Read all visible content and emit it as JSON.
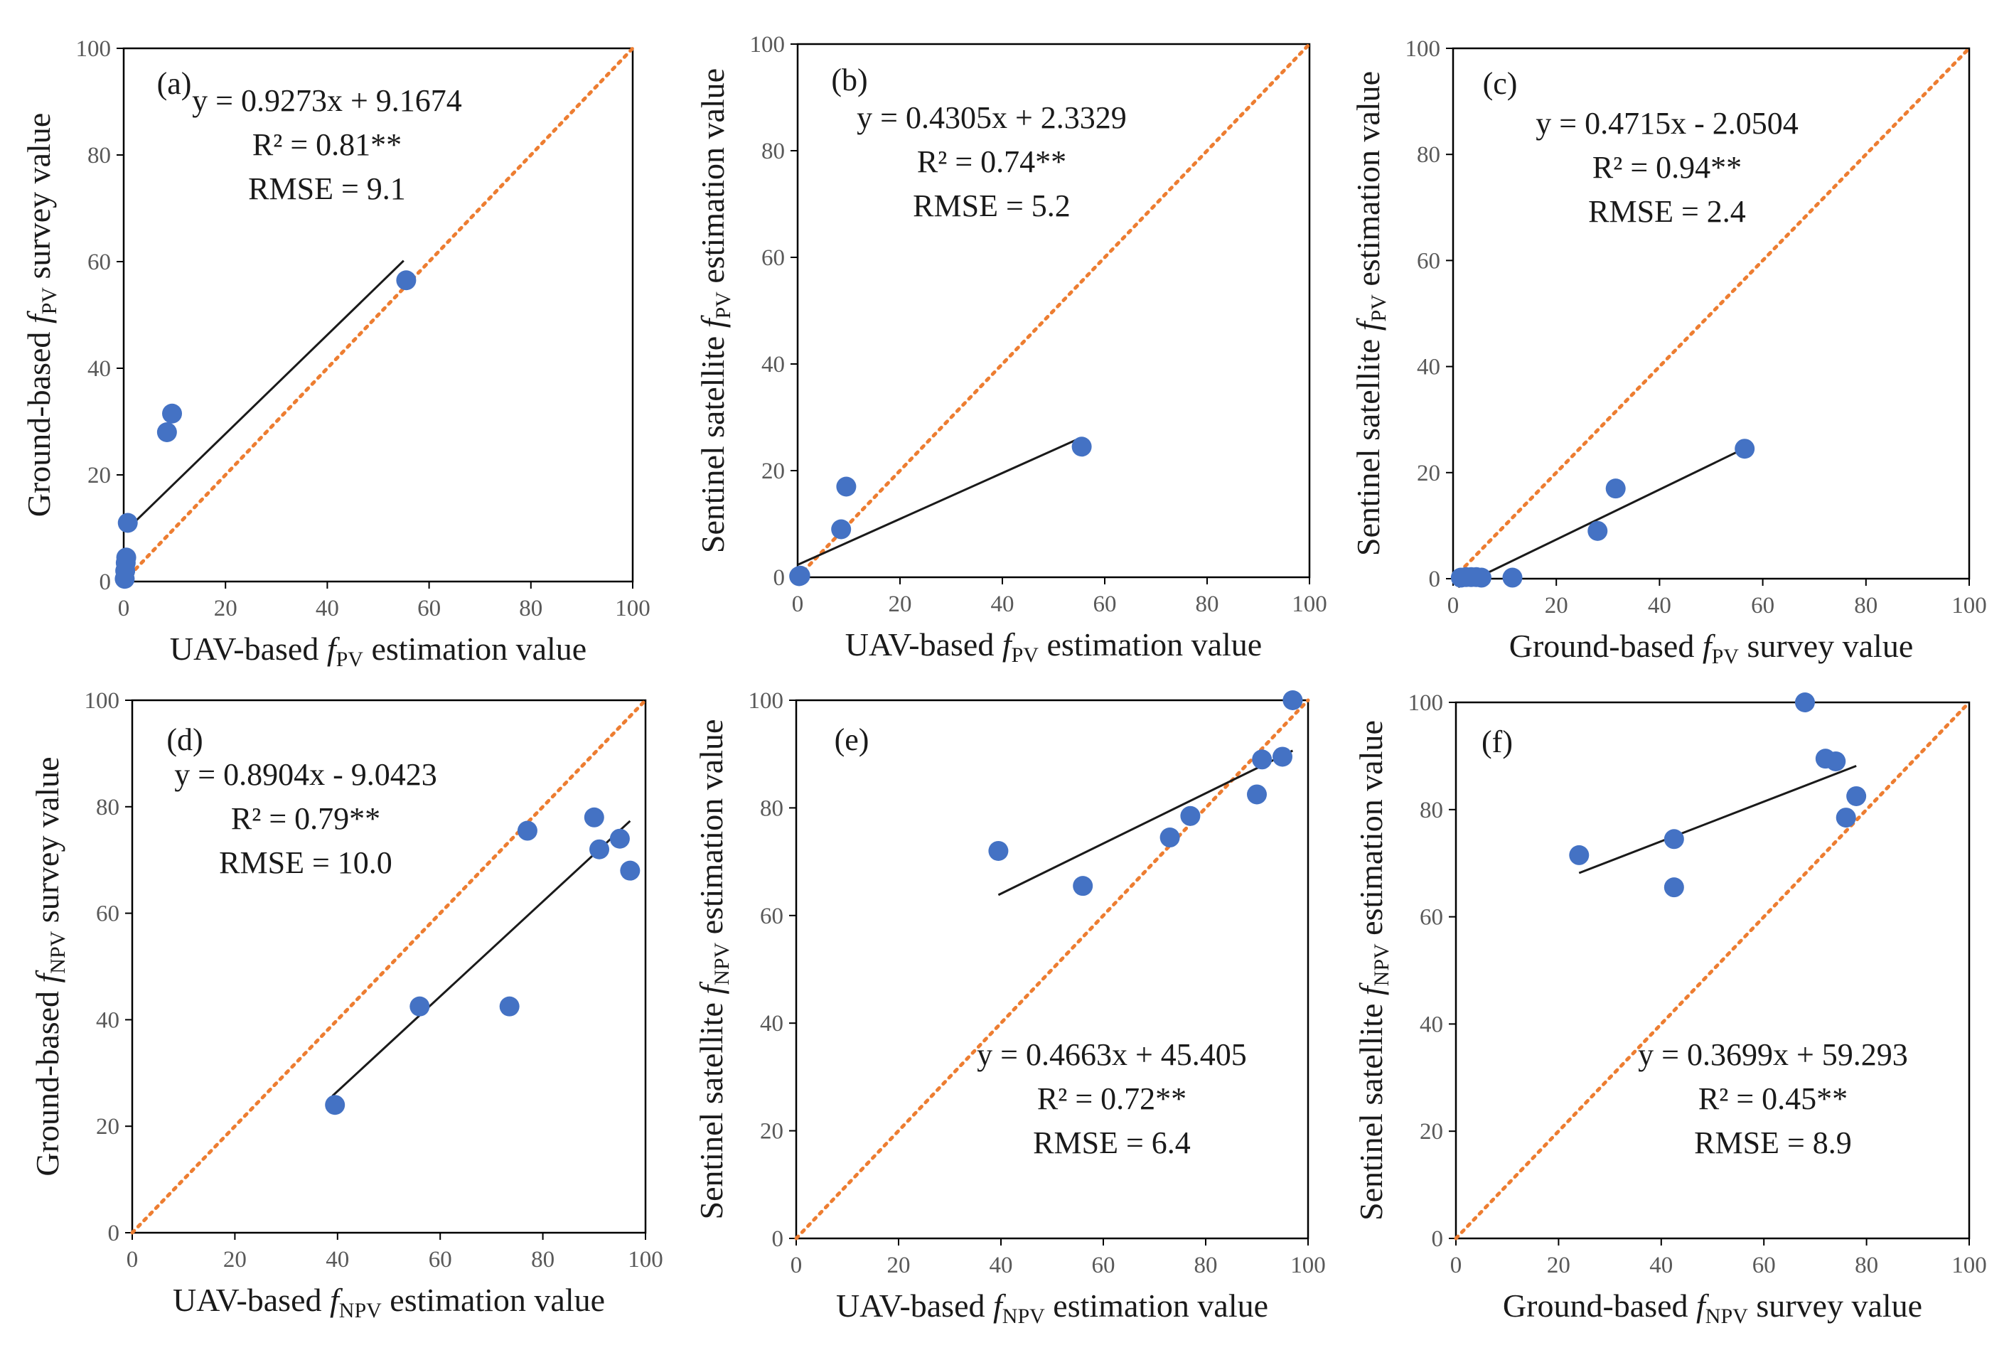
{
  "colors": {
    "point": "#4472C4",
    "identity_line": "#ED7D31",
    "fit_line": "#1a1a1a",
    "axis": "#000000",
    "tick_text": "#595959"
  },
  "chart_data": [
    {
      "type": "scatter",
      "panel": "(a)",
      "xlabel": {
        "pre": "UAV-based ",
        "var": "f",
        "sub": "PV",
        "post": " estimation value"
      },
      "ylabel": {
        "pre": "Ground-based ",
        "var": "f",
        "sub": "PV",
        "post": " survey value"
      },
      "xlim": [
        0,
        100
      ],
      "ylim": [
        0,
        100
      ],
      "xticks": [
        "0",
        "20",
        "40",
        "60",
        "80",
        "100"
      ],
      "yticks": [
        "0",
        "20",
        "40",
        "60",
        "80",
        "100"
      ],
      "points": [
        [
          0.2,
          0.5
        ],
        [
          0.3,
          2
        ],
        [
          0.4,
          3.5
        ],
        [
          0.5,
          4.5
        ],
        [
          0.8,
          11
        ],
        [
          8.5,
          28
        ],
        [
          9.5,
          31.5
        ],
        [
          55.5,
          56.5
        ]
      ],
      "fit_x_range": [
        1,
        55
      ],
      "fit": {
        "slope": 0.9273,
        "intercept": 9.1674
      },
      "equation": "y = 0.9273x + 9.1674",
      "r2": "R² = 0.81**",
      "rmse": "RMSE = 9.1",
      "annotation_position": "top-left"
    },
    {
      "type": "scatter",
      "panel": "(b)",
      "xlabel": {
        "pre": "UAV-based ",
        "var": "f",
        "sub": "PV",
        "post": " estimation value"
      },
      "ylabel": {
        "pre": "Sentinel satellite  ",
        "var": "f",
        "sub": "PV",
        "post": "  estimation value"
      },
      "xlim": [
        0,
        100
      ],
      "ylim": [
        0,
        100
      ],
      "xticks": [
        "0",
        "20",
        "40",
        "60",
        "80",
        "100"
      ],
      "yticks": [
        "0",
        "20",
        "40",
        "60",
        "80",
        "100"
      ],
      "points": [
        [
          0.3,
          0.2
        ],
        [
          0.5,
          0.3
        ],
        [
          8.5,
          9
        ],
        [
          9.5,
          17
        ],
        [
          55.5,
          24.5
        ]
      ],
      "fit_x_range": [
        0,
        55
      ],
      "fit": {
        "slope": 0.4305,
        "intercept": 2.3329
      },
      "equation": "y = 0.4305x + 2.3329",
      "r2": "R² = 0.74**",
      "rmse": "RMSE = 5.2",
      "annotation_position": "top-left"
    },
    {
      "type": "scatter",
      "panel": "(c)",
      "xlabel": {
        "pre": "Ground-based ",
        "var": "f",
        "sub": "PV",
        "post": " survey value"
      },
      "ylabel": {
        "pre": "Sentinel satellite  ",
        "var": "f",
        "sub": "PV",
        "post": "  estimation value"
      },
      "xlim": [
        0,
        100
      ],
      "ylim": [
        0,
        100
      ],
      "xticks": [
        "0",
        "20",
        "40",
        "60",
        "80",
        "100"
      ],
      "yticks": [
        "0",
        "20",
        "40",
        "60",
        "80",
        "100"
      ],
      "points": [
        [
          1.5,
          0.2
        ],
        [
          2.5,
          0.3
        ],
        [
          3.5,
          0.3
        ],
        [
          4.5,
          0.3
        ],
        [
          5.5,
          0.2
        ],
        [
          11.5,
          0.2
        ],
        [
          28,
          9
        ],
        [
          31.5,
          17
        ],
        [
          56.5,
          24.5
        ]
      ],
      "fit_x_range": [
        1,
        56
      ],
      "fit": {
        "slope": 0.4715,
        "intercept": -2.0504
      },
      "equation": "y = 0.4715x - 2.0504",
      "r2": "R² = 0.94**",
      "rmse": "RMSE = 2.4",
      "annotation_position": "top-left"
    },
    {
      "type": "scatter",
      "panel": "(d)",
      "xlabel": {
        "pre": "UAV-based ",
        "var": "f",
        "sub": "NPV",
        "post": " estimation value"
      },
      "ylabel": {
        "pre": "Ground-based ",
        "var": "f",
        "sub": "NPV",
        "post": " survey value"
      },
      "xlim": [
        0,
        100
      ],
      "ylim": [
        0,
        100
      ],
      "xticks": [
        "0",
        "20",
        "40",
        "60",
        "80",
        "100"
      ],
      "yticks": [
        "0",
        "20",
        "40",
        "60",
        "80",
        "100"
      ],
      "points": [
        [
          39.5,
          24
        ],
        [
          56,
          42.5
        ],
        [
          73.5,
          42.5
        ],
        [
          77,
          75.5
        ],
        [
          90,
          78
        ],
        [
          91,
          72
        ],
        [
          95,
          74
        ],
        [
          97,
          68
        ]
      ],
      "fit_x_range": [
        39,
        97
      ],
      "fit": {
        "slope": 0.8904,
        "intercept": -9.0423
      },
      "equation": "y = 0.8904x - 9.0423",
      "r2": "R² = 0.79**",
      "rmse": "RMSE = 10.0",
      "annotation_position": "mid-left"
    },
    {
      "type": "scatter",
      "panel": "(e)",
      "xlabel": {
        "pre": "UAV-based ",
        "var": "f",
        "sub": "NPV",
        "post": " estimation value"
      },
      "ylabel": {
        "pre": "Sentinel satellite  ",
        "var": "f",
        "sub": "NPV",
        "post": " estimation value"
      },
      "xlim": [
        0,
        100
      ],
      "ylim": [
        0,
        100
      ],
      "xticks": [
        "0",
        "20",
        "40",
        "60",
        "80",
        "100"
      ],
      "yticks": [
        "0",
        "20",
        "40",
        "60",
        "80",
        "100"
      ],
      "points": [
        [
          39.5,
          72
        ],
        [
          56,
          65.5
        ],
        [
          73,
          74.5
        ],
        [
          77,
          78.5
        ],
        [
          90,
          82.5
        ],
        [
          91,
          89
        ],
        [
          95,
          89.5
        ],
        [
          97,
          100
        ]
      ],
      "fit_x_range": [
        39.5,
        97
      ],
      "fit": {
        "slope": 0.4663,
        "intercept": 45.405
      },
      "equation": "y = 0.4663x + 45.405",
      "r2": "R² = 0.72**",
      "rmse": "RMSE = 6.4",
      "annotation_position": "bottom-right"
    },
    {
      "type": "scatter",
      "panel": "(f)",
      "xlabel": {
        "pre": "Ground-based ",
        "var": "f",
        "sub": "NPV",
        "post": " survey value"
      },
      "ylabel": {
        "pre": "Sentinel satellite  ",
        "var": "f",
        "sub": "NPV",
        "post": " estimation value"
      },
      "xlim": [
        0,
        100
      ],
      "ylim": [
        0,
        100
      ],
      "xticks": [
        "0",
        "20",
        "40",
        "60",
        "80",
        "100"
      ],
      "yticks": [
        "0",
        "20",
        "40",
        "60",
        "80",
        "100"
      ],
      "points": [
        [
          24,
          71.5
        ],
        [
          42.5,
          74.5
        ],
        [
          42.5,
          65.5
        ],
        [
          68,
          100
        ],
        [
          72,
          89.5
        ],
        [
          74,
          89
        ],
        [
          76,
          78.5
        ],
        [
          78,
          82.5
        ]
      ],
      "fit_x_range": [
        24,
        78
      ],
      "fit": {
        "slope": 0.3699,
        "intercept": 59.293
      },
      "equation": "y = 0.3699x + 59.293",
      "r2": "R² = 0.45**",
      "rmse": "RMSE = 8.9",
      "annotation_position": "bottom-right"
    }
  ]
}
